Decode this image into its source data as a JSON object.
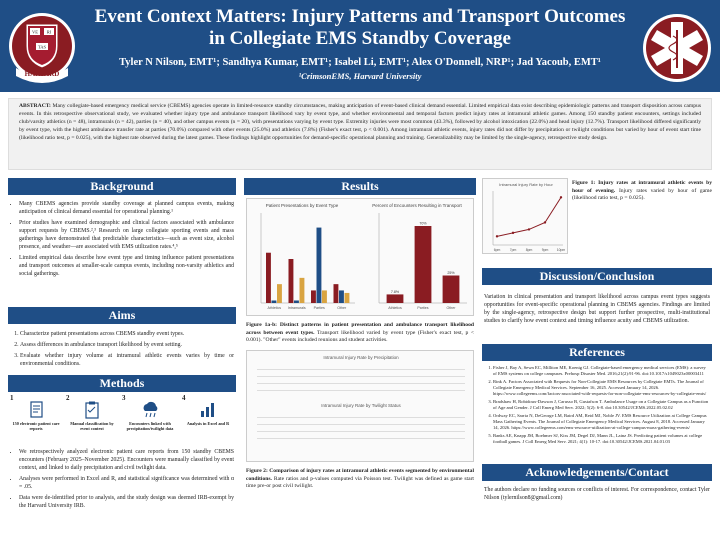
{
  "header": {
    "title": "Event Context Matters: Injury Patterns and Transport Outcomes in Collegiate EMS Standby Coverage",
    "authors": "Tyler N Nilson, EMT¹; Sandhya Kumar, EMT¹; Isabel Li, EMT¹; Alex O'Donnell, NRP¹; Jad Yacoub, EMT¹",
    "affiliation": "¹CrimsonEMS, Harvard University",
    "logo_left_text": "HARVARD",
    "logo_left_shield": [
      "VE",
      "RI",
      "TAS"
    ]
  },
  "abstract": {
    "label": "ABSTRACT:",
    "text": "Many collegiate-based emergency medical service (CBEMS) agencies operate in limited-resource standby circumstances, making anticipation of event-based clinical demand essential. Limited empirical data exist describing epidemiologic patterns and transport disposition across campus events. In this retrospective observational study, we evaluated whether injury type and ambulance transport likelihood vary by event type, and whether environmental and temporal factors predict injury rates at intramural athletic games. Among 150 standby patient encounters, settings included club/varsity athletics (n = 48), intramurals (n = 42), parties (n = 40), and other campus events (n = 20), with presentations varying by event type. Extremity injuries were most common (43.3%), followed by alcohol intoxication (22.0%) and head injury (12.7%). Transport likelihood differed significantly by event type, with the highest ambulance transfer rate at parties (70.0%) compared with other events (25.0%) and athletics (7.8%) (Fisher's exact test, p < 0.001). Among intramural athletic events, injury rates did not differ by precipitation or twilight conditions but varied by hour of event start time (likelihood ratio test, p = 0.025), with the highest rate observed during the latest games. These findings highlight opportunities for demand-specific operational planning and training. Generalizability may be limited by the single-agency, retrospective study design."
  },
  "background": {
    "heading": "Background",
    "bullets": [
      "Many CBEMS agencies provide standby coverage at planned campus events, making anticipation of clinical demand essential for operational planning.¹",
      "Prior studies have examined demographic and clinical factors associated with ambulance support requests by CBEMS.²,³ Research on large collegiate sporting events and mass gatherings have demonstrated that predictable characteristics—such as event size, alcohol presence, and weather—are associated with EMS utilization rates.⁴,⁵",
      "Limited empirical data describe how event type and timing influence patient presentations and transport outcomes at smaller-scale campus events, including non-varsity athletics and social gatherings."
    ]
  },
  "aims": {
    "heading": "Aims",
    "items": [
      "Characterize patient presentations across CBEMS standby event types.",
      "Assess differences in ambulance transport likelihood by event setting.",
      "Evaluate whether injury volume at intramural athletic events varies by time or environmental conditions."
    ]
  },
  "methods": {
    "heading": "Methods",
    "steps": [
      {
        "n": "1",
        "label": "150 electronic patient care reports"
      },
      {
        "n": "2",
        "label": "Manual classification by event context"
      },
      {
        "n": "3",
        "label": "Encounters linked with precipitation/twilight data"
      },
      {
        "n": "4",
        "label": "Analysis in Excel and R"
      }
    ],
    "bullets": [
      "We retrospectively analyzed electronic patient care reports from 150 standby CBEMS encounters (February 2025–November 2025). Encounters were manually classified by event context, and linked to daily precipitation and civil twilight data.",
      "Analyses were performed in Excel and R, and statistical significance was determined with α = .05.",
      "Data were de-identified prior to analysis, and the study design was deemed IRB-exempt by the Harvard University IRB."
    ]
  },
  "results": {
    "heading": "Results",
    "fig1a_title_left": "Patient Presentations by Event Type",
    "fig1a_title_right": "Percent of Encounters Resulting in Transport",
    "fig1a_caption_bold": "Figure 1a-b: Distinct patterns in patient presentation and ambulance transport likelihood across between event types.",
    "fig1a_caption": "Transport likelihood varied by event type (Fisher's exact test, p < 0.001). \"Other\" events included reunions and student activities.",
    "fig1_chart_title": "Intramural Injury Rate by Hour",
    "fig1_caption_bold": "Figure 1: Injury rates at intramural athletic events by hour of evening.",
    "fig1_caption": "Injury rates varied by hour of game (likelihood ratio test, p = 0.025).",
    "fig2_title_a": "Intramural Injury Rate by Precipitation",
    "fig2_title_b": "Intramural Injury Rate by Twilight Status",
    "fig2_caption_bold": "Figure 2: Comparison of injury rates at intramural athletic events segmented by environmental conditions.",
    "fig2_caption": "Rate ratios and p-values computed via Poisson test. Twilight was defined as game start time pre-or post civil twilight."
  },
  "discussion": {
    "heading": "Discussion/Conclusion",
    "text": "Variation in clinical presentation and transport likelihood across campus event types suggests opportunities for event-specific operational planning in CBEMS agencies. Findings are limited by the single-agency, retrospective design but support further prospective, multi-institutional studies to clarify how event context and timing influence acuity and CBEMS utilization."
  },
  "references": {
    "heading": "References",
    "items": [
      "Fisher J, Bay A, Sewn EC, Milliton ME, Koenig GJ. Collegiate-based emergency medical services (EMS): a survey of EMS systems on college campuses. Prehosp Disaster Med. 2016;21(2):91-96. doi:10.1017/s1049023x00003411",
      "Rink A. Factors Associated with Requests for Non-Collegiate EMS Resources by Collegiate EMTs. The Journal of Collegiate Emergency Medical Services. September 16, 2025. Accessed January 14, 2026. https://www.collegeems.com/factors-associated-with-requests-for-non-collegiate-ems-resources-by-collegiate-emts/",
      "Bradshaw H, Robidoux-Dawson J, Carusso B, Gustafson T. Ambulance Usage on a Collegiate Campus as a Function of Age and Gender. J Coll Emerg Med Serv. 2022; 5(2): 6-8. doi:10.30542/JCEMS.2022.05.02.02",
      "Ordway EC, Sarria N, DeGeorge LM, Baird AM, Reid MJ, Noble JV. EMS Resource Utilization at College Campus Mass Gathering Events. The Journal of Collegiate Emergency Medical Services. August 8, 2018. Accessed January 14, 2026. https://www.collegeems.com/ems-resource-utilization-at-college-campus-mass-gathering-events/",
      "Banks AE, Knapp JM, Boehmer SJ, Kiss JM, Degel DJ, Mann JL, Lainz JS. Predicting patient volumes at college football games. J Coll Emerg Med Serv. 2021; 4(1): 10-17. doi:10.30542/JCEMS.2021.04.01.03"
    ]
  },
  "acknowledgements": {
    "heading": "Acknowledgements/Contact",
    "text": "The authors declare no funding sources or conflicts of interest. For correspondence, contact Tyler Nilson (tylernilson8@gmail.com)"
  },
  "chart_data": [
    {
      "type": "bar",
      "title": "Patient Presentations by Event Type",
      "categories": [
        "Athletics",
        "Intramurals",
        "Parties",
        "Other"
      ],
      "series": [
        {
          "name": "Extremity",
          "values": [
            40,
            35,
            10,
            15
          ],
          "color": "#8a1c22"
        },
        {
          "name": "Intoxication",
          "values": [
            2,
            2,
            60,
            10
          ],
          "color": "#1f4e86"
        },
        {
          "name": "Head",
          "values": [
            15,
            20,
            10,
            8
          ],
          "color": "#d9a441"
        }
      ],
      "ylim": [
        0,
        70
      ]
    },
    {
      "type": "bar",
      "title": "Percent of Encounters Resulting in Transport",
      "categories": [
        "Athletics",
        "Parties",
        "Other"
      ],
      "values": [
        7.8,
        70.0,
        25.0
      ],
      "ylim": [
        0,
        80
      ],
      "ylabel": "%"
    },
    {
      "type": "line",
      "title": "Intramural Injury Rate by Hour",
      "x": [
        "6pm",
        "7pm",
        "8pm",
        "9pm",
        "10pm"
      ],
      "values": [
        0.1,
        0.14,
        0.18,
        0.26,
        0.55
      ],
      "ylim": [
        0,
        0.6
      ]
    }
  ],
  "colors": {
    "primary": "#1f4e86",
    "crimson": "#8a1c22",
    "gold": "#d9a441"
  }
}
